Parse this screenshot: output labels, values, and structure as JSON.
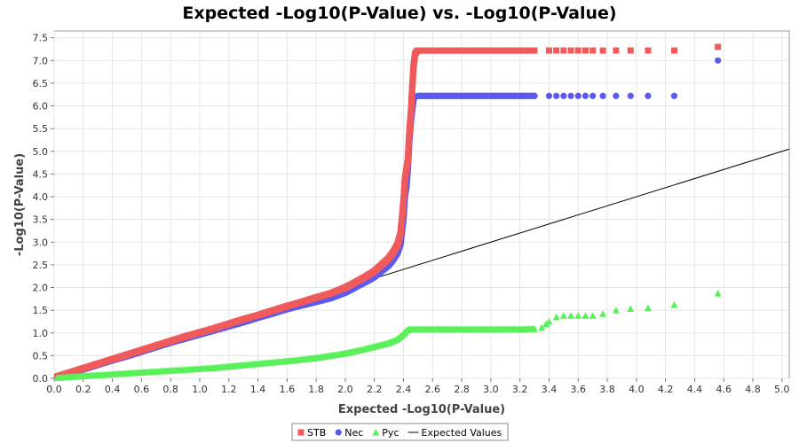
{
  "chart_data": {
    "type": "scatter",
    "title": "Expected -Log10(P-Value) vs. -Log10(P-Value)",
    "xlabel": "Expected -Log10(P-Value)",
    "ylabel": "-Log10(P-Value)",
    "xlim": [
      0,
      5.05
    ],
    "ylim": [
      0,
      7.65
    ],
    "xticks": [
      "0.0",
      "0.2",
      "0.4",
      "0.6",
      "0.8",
      "1.0",
      "1.2",
      "1.4",
      "1.6",
      "1.8",
      "2.0",
      "2.2",
      "2.4",
      "2.6",
      "2.8",
      "3.0",
      "3.2",
      "3.4",
      "3.6",
      "3.8",
      "4.0",
      "4.2",
      "4.4",
      "4.6",
      "4.8",
      "5.0"
    ],
    "yticks": [
      "0.0",
      "0.5",
      "1.0",
      "1.5",
      "2.0",
      "2.5",
      "3.0",
      "3.5",
      "4.0",
      "4.5",
      "5.0",
      "5.5",
      "6.0",
      "6.5",
      "7.0",
      "7.5"
    ],
    "grid": true,
    "legend_position": "bottom",
    "legend": {
      "items": [
        {
          "label": "STB",
          "marker": "square",
          "color": "#f05a5a"
        },
        {
          "label": "Nec",
          "marker": "circle",
          "color": "#5a5af0"
        },
        {
          "label": "Pyc",
          "marker": "triangle",
          "color": "#5af05a"
        },
        {
          "label": "Expected Values",
          "marker": "line",
          "color": "#000000"
        }
      ]
    },
    "expected_line": {
      "name": "Expected Values",
      "x": [
        0,
        5.05
      ],
      "y": [
        0,
        5.05
      ],
      "color": "#000000"
    },
    "series": [
      {
        "name": "Nec",
        "marker": "circle",
        "color": "#5a5af0",
        "x": [
          0.02,
          0.1,
          0.2,
          0.3,
          0.4,
          0.5,
          0.6,
          0.7,
          0.8,
          0.9,
          1.0,
          1.1,
          1.2,
          1.3,
          1.4,
          1.5,
          1.6,
          1.7,
          1.8,
          1.9,
          2.0,
          2.05,
          2.1,
          2.15,
          2.2,
          2.25,
          2.3,
          2.33,
          2.36,
          2.38,
          2.4,
          2.41,
          2.42,
          2.43,
          2.44,
          2.45,
          2.46,
          2.47,
          2.48,
          2.5,
          2.55,
          2.6,
          2.7,
          2.8,
          2.9,
          3.0,
          3.1,
          3.2,
          3.3,
          3.4,
          3.45,
          3.5,
          3.55,
          3.6,
          3.65,
          3.7,
          3.77,
          3.86,
          3.96,
          4.08,
          4.26,
          4.56
        ],
        "y": [
          0.03,
          0.1,
          0.19,
          0.29,
          0.39,
          0.48,
          0.58,
          0.68,
          0.78,
          0.87,
          0.96,
          1.05,
          1.14,
          1.23,
          1.33,
          1.42,
          1.52,
          1.6,
          1.68,
          1.76,
          1.88,
          1.96,
          2.05,
          2.13,
          2.22,
          2.35,
          2.48,
          2.6,
          2.75,
          2.95,
          3.5,
          4.0,
          4.2,
          4.6,
          5.2,
          5.6,
          5.9,
          6.15,
          6.2,
          6.22,
          6.22,
          6.22,
          6.22,
          6.22,
          6.22,
          6.22,
          6.22,
          6.22,
          6.22,
          6.22,
          6.22,
          6.22,
          6.22,
          6.22,
          6.22,
          6.22,
          6.22,
          6.22,
          6.22,
          6.22,
          6.22,
          7.0
        ]
      },
      {
        "name": "STB",
        "marker": "square",
        "color": "#f05a5a",
        "x": [
          0.02,
          0.1,
          0.2,
          0.3,
          0.4,
          0.5,
          0.6,
          0.7,
          0.8,
          0.9,
          1.0,
          1.1,
          1.2,
          1.3,
          1.4,
          1.5,
          1.6,
          1.7,
          1.8,
          1.9,
          2.0,
          2.05,
          2.1,
          2.15,
          2.2,
          2.25,
          2.3,
          2.33,
          2.36,
          2.38,
          2.4,
          2.41,
          2.42,
          2.43,
          2.44,
          2.45,
          2.46,
          2.47,
          2.48,
          2.49,
          2.5,
          2.55,
          2.6,
          2.7,
          2.8,
          2.9,
          3.0,
          3.1,
          3.2,
          3.3,
          3.4,
          3.45,
          3.5,
          3.55,
          3.6,
          3.65,
          3.7,
          3.77,
          3.86,
          3.96,
          4.08,
          4.26,
          4.56
        ],
        "y": [
          0.04,
          0.12,
          0.22,
          0.32,
          0.42,
          0.52,
          0.62,
          0.72,
          0.82,
          0.92,
          1.01,
          1.1,
          1.2,
          1.3,
          1.39,
          1.49,
          1.59,
          1.68,
          1.78,
          1.87,
          2.0,
          2.08,
          2.17,
          2.26,
          2.36,
          2.5,
          2.65,
          2.78,
          2.95,
          3.2,
          3.9,
          4.4,
          4.6,
          4.8,
          5.4,
          5.8,
          6.4,
          6.9,
          7.15,
          7.2,
          7.22,
          7.22,
          7.22,
          7.22,
          7.22,
          7.22,
          7.22,
          7.22,
          7.22,
          7.22,
          7.22,
          7.22,
          7.22,
          7.22,
          7.22,
          7.22,
          7.22,
          7.22,
          7.22,
          7.22,
          7.22,
          7.22,
          7.3
        ]
      },
      {
        "name": "Pyc",
        "marker": "triangle",
        "color": "#5af05a",
        "x": [
          0.02,
          0.1,
          0.2,
          0.3,
          0.4,
          0.5,
          0.6,
          0.7,
          0.8,
          0.9,
          1.0,
          1.1,
          1.2,
          1.3,
          1.4,
          1.5,
          1.6,
          1.7,
          1.8,
          1.9,
          2.0,
          2.1,
          2.2,
          2.3,
          2.35,
          2.38,
          2.4,
          2.42,
          2.44,
          2.5,
          2.6,
          2.7,
          2.8,
          2.9,
          3.0,
          3.1,
          3.2,
          3.3,
          3.35,
          3.38,
          3.4,
          3.45,
          3.5,
          3.55,
          3.6,
          3.65,
          3.7,
          3.77,
          3.86,
          3.96,
          4.08,
          4.26,
          4.56
        ],
        "y": [
          0.01,
          0.03,
          0.05,
          0.07,
          0.09,
          0.11,
          0.13,
          0.15,
          0.17,
          0.19,
          0.21,
          0.23,
          0.26,
          0.29,
          0.32,
          0.35,
          0.38,
          0.41,
          0.45,
          0.5,
          0.55,
          0.62,
          0.7,
          0.78,
          0.85,
          0.92,
          0.98,
          1.05,
          1.08,
          1.08,
          1.08,
          1.08,
          1.08,
          1.08,
          1.08,
          1.08,
          1.08,
          1.09,
          1.12,
          1.2,
          1.25,
          1.35,
          1.38,
          1.38,
          1.38,
          1.38,
          1.38,
          1.42,
          1.5,
          1.53,
          1.55,
          1.62,
          1.87
        ]
      }
    ]
  }
}
